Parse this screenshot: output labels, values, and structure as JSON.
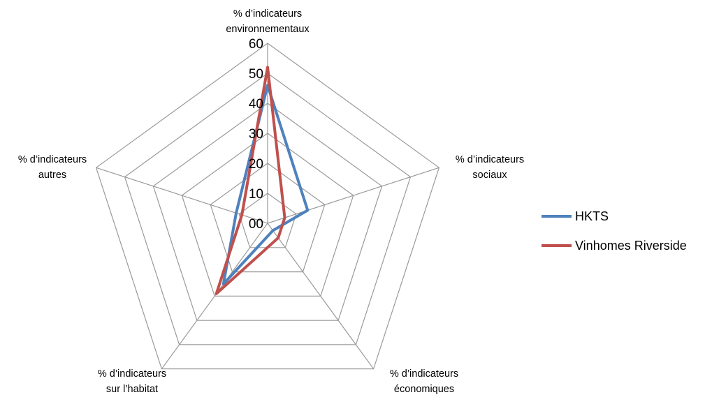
{
  "chart_data": {
    "type": "radar",
    "axes": [
      [
        "% d’indicateurs",
        "environnementaux"
      ],
      [
        "% d’indicateurs",
        "sociaux"
      ],
      [
        "% d’indicateurs",
        "économiques"
      ],
      [
        "% d’indicateurs",
        "sur l’habitat"
      ],
      [
        "% d’indicateurs",
        "autres"
      ]
    ],
    "ticks": [
      "00",
      "10",
      "20",
      "30",
      "40",
      "50",
      "60"
    ],
    "rlim": [
      0,
      60
    ],
    "grid": true,
    "legend_position": "right",
    "series": [
      {
        "name": "HKTS",
        "color": "#4f81bd",
        "values": [
          46,
          14,
          3,
          25,
          11
        ]
      },
      {
        "name": "Vinhomes Riverside",
        "color": "#c0504d",
        "values": [
          52,
          6,
          6,
          29,
          9
        ]
      }
    ]
  }
}
